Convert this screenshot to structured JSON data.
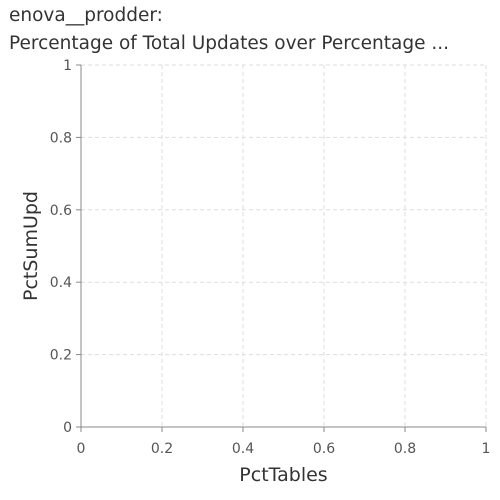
{
  "chart_data": {
    "type": "scatter",
    "title_lines": [
      "enova__prodder:",
      "Percentage of Total Updates over Percentage ..."
    ],
    "xlabel": "PctTables",
    "ylabel": "PctSumUpd",
    "xlim": [
      0,
      1
    ],
    "ylim": [
      0,
      1
    ],
    "x_ticks": [
      "0",
      "0.2",
      "0.4",
      "0.6",
      "0.8",
      "1"
    ],
    "y_ticks": [
      "0",
      "0.2",
      "0.4",
      "0.6",
      "0.8",
      "1"
    ],
    "grid": true,
    "series": []
  },
  "colors": {
    "grid": "#dddddd",
    "axis": "#888888",
    "text": "#333333"
  }
}
